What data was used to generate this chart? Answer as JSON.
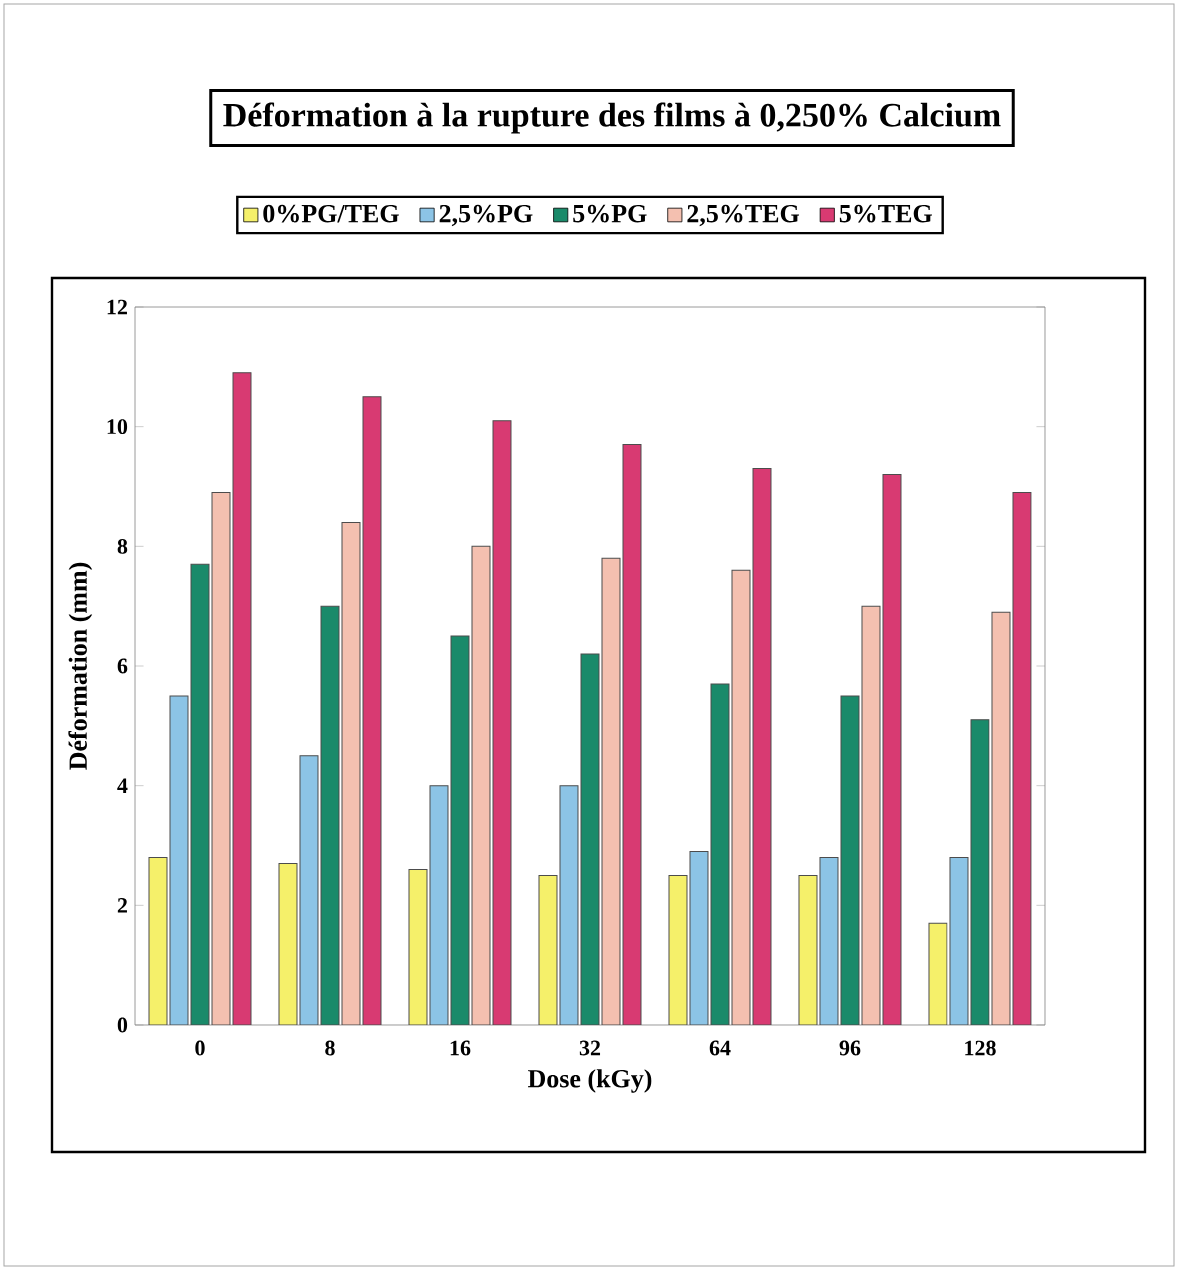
{
  "chart_data": {
    "type": "bar",
    "title": "Déformation à la rupture des films à 0,250% Calcium",
    "xlabel": "Dose (kGy)",
    "ylabel": "Déformation (mm)",
    "categories": [
      "0",
      "8",
      "16",
      "32",
      "64",
      "96",
      "128"
    ],
    "series": [
      {
        "name": "0%PG/TEG",
        "color": "#f5f06a",
        "values": [
          2.8,
          2.7,
          2.6,
          2.5,
          2.5,
          2.5,
          1.7
        ]
      },
      {
        "name": "2,5%PG",
        "color": "#8cc4e6",
        "values": [
          5.5,
          4.5,
          4.0,
          4.0,
          2.9,
          2.8,
          2.8
        ]
      },
      {
        "name": "5%PG",
        "color": "#1a8a6a",
        "values": [
          7.7,
          7.0,
          6.5,
          6.2,
          5.7,
          5.5,
          5.1
        ]
      },
      {
        "name": "2,5%TEG",
        "color": "#f4c0b0",
        "values": [
          8.9,
          8.4,
          8.0,
          7.8,
          7.6,
          7.0,
          6.9
        ]
      },
      {
        "name": "5%TEG",
        "color": "#d83a72",
        "values": [
          10.9,
          10.5,
          10.1,
          9.7,
          9.3,
          9.2,
          8.9
        ]
      }
    ],
    "ylim": [
      0,
      12
    ],
    "yticks": [
      0,
      2,
      4,
      6,
      8,
      10,
      12
    ],
    "legend": "top"
  }
}
